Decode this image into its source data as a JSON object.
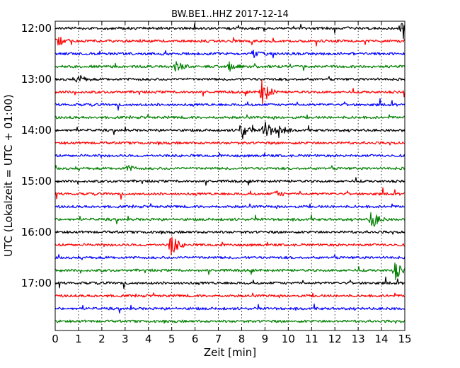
{
  "chart_data": {
    "type": "line",
    "title": "BW.BE1..HHZ 2017-12-14",
    "xlabel": "Zeit  [min]",
    "ylabel": "UTC (Lokalzeit = UTC + 01:00)",
    "xlim": [
      0,
      15
    ],
    "x_ticks": [
      0,
      1,
      2,
      3,
      4,
      5,
      6,
      7,
      8,
      9,
      10,
      11,
      12,
      13,
      14,
      15
    ],
    "x_tick_labels": [
      "0",
      "1",
      "2",
      "3",
      "4",
      "5",
      "6",
      "7",
      "8",
      "9",
      "10",
      "11",
      "12",
      "13",
      "14",
      "15"
    ],
    "y_tick_labels": [
      "12:00",
      "13:00",
      "14:00",
      "15:00",
      "16:00",
      "17:00"
    ],
    "grid_x": true,
    "colors": [
      "#000000",
      "#ff0000",
      "#0000ff",
      "#008000"
    ],
    "series": [
      {
        "start": "12:00",
        "events": [
          {
            "t": 14.9,
            "amp": 1.0
          }
        ]
      },
      {
        "start": "12:15",
        "events": [
          {
            "t": 0.1,
            "amp": 0.5
          }
        ]
      },
      {
        "start": "12:30",
        "events": [
          {
            "t": 8.5,
            "amp": 0.3
          }
        ]
      },
      {
        "start": "12:45",
        "events": [
          {
            "t": 5.2,
            "amp": 0.5
          },
          {
            "t": 7.5,
            "amp": 0.4
          }
        ]
      },
      {
        "start": "13:00",
        "events": [
          {
            "t": 1.0,
            "amp": 0.4
          }
        ]
      },
      {
        "start": "13:15",
        "events": [
          {
            "t": 8.9,
            "amp": 1.3
          }
        ]
      },
      {
        "start": "13:30",
        "events": []
      },
      {
        "start": "13:45",
        "events": []
      },
      {
        "start": "14:00",
        "events": [
          {
            "t": 8.0,
            "amp": 0.9
          },
          {
            "t": 9.0,
            "amp": 1.1
          },
          {
            "t": 9.6,
            "amp": 0.7
          }
        ]
      },
      {
        "start": "14:15",
        "events": []
      },
      {
        "start": "14:30",
        "events": []
      },
      {
        "start": "14:45",
        "events": [
          {
            "t": 3.1,
            "amp": 0.3
          }
        ]
      },
      {
        "start": "15:00",
        "events": []
      },
      {
        "start": "15:15",
        "events": [
          {
            "t": 9.5,
            "amp": 0.3
          }
        ]
      },
      {
        "start": "15:30",
        "events": []
      },
      {
        "start": "15:45",
        "events": [
          {
            "t": 13.6,
            "amp": 0.9
          }
        ]
      },
      {
        "start": "16:00",
        "events": []
      },
      {
        "start": "16:15",
        "events": [
          {
            "t": 5.0,
            "amp": 1.2
          }
        ]
      },
      {
        "start": "16:30",
        "events": []
      },
      {
        "start": "16:45",
        "events": [
          {
            "t": 14.6,
            "amp": 0.8
          }
        ]
      },
      {
        "start": "17:00",
        "events": []
      },
      {
        "start": "17:15",
        "events": []
      },
      {
        "start": "17:30",
        "events": []
      },
      {
        "start": "17:45",
        "events": []
      }
    ]
  }
}
